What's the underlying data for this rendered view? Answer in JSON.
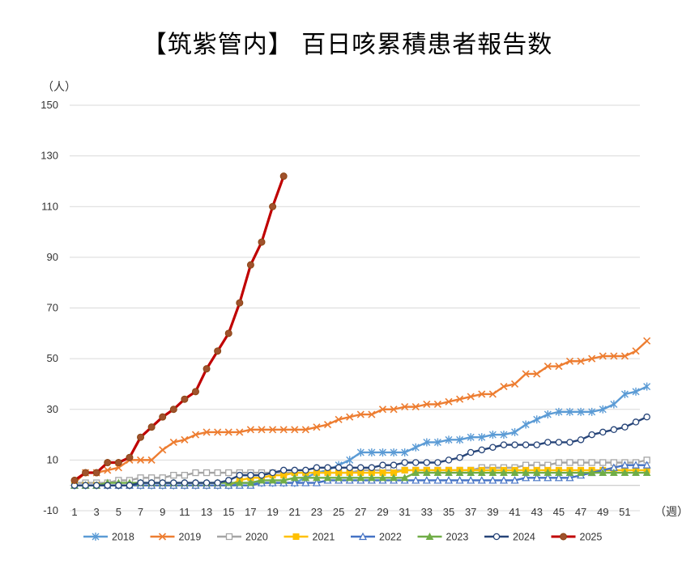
{
  "chart_data": {
    "type": "line",
    "title": "【筑紫管内】 百日咳累積患者報告数",
    "ylabel": "（人）",
    "xlabel": "（週）",
    "ylim": [
      -10,
      150
    ],
    "yticks": [
      -10,
      10,
      30,
      50,
      70,
      90,
      110,
      130,
      150
    ],
    "xlim": [
      1,
      52
    ],
    "xticks": [
      1,
      3,
      5,
      7,
      9,
      11,
      13,
      15,
      17,
      19,
      21,
      23,
      25,
      27,
      29,
      31,
      33,
      35,
      37,
      39,
      41,
      43,
      45,
      47,
      49,
      51
    ],
    "grid": "horizontal",
    "legend": "bottom",
    "series": [
      {
        "name": "2018",
        "color": "#5B9BD5",
        "marker": "star",
        "values": [
          0,
          0,
          0,
          0,
          0,
          0,
          0,
          0,
          0,
          0,
          0,
          0,
          0,
          0,
          0,
          1,
          1,
          1,
          1,
          1,
          1,
          3,
          5,
          6,
          8,
          10,
          13,
          13,
          13,
          13,
          13,
          15,
          17,
          17,
          18,
          18,
          19,
          19,
          20,
          20,
          21,
          24,
          26,
          28,
          29,
          29,
          29,
          29,
          30,
          32,
          36,
          37,
          39
        ]
      },
      {
        "name": "2019",
        "color": "#ED7D31",
        "marker": "x",
        "values": [
          1,
          5,
          5,
          6,
          7,
          10,
          10,
          10,
          14,
          17,
          18,
          20,
          21,
          21,
          21,
          21,
          22,
          22,
          22,
          22,
          22,
          22,
          23,
          24,
          26,
          27,
          28,
          28,
          30,
          30,
          31,
          31,
          32,
          32,
          33,
          34,
          35,
          36,
          36,
          39,
          40,
          44,
          44,
          47,
          47,
          49,
          49,
          50,
          51,
          51,
          51,
          53,
          57
        ]
      },
      {
        "name": "2020",
        "color": "#A5A5A5",
        "marker": "square",
        "values": [
          1,
          1,
          1,
          1,
          2,
          2,
          3,
          3,
          3,
          4,
          4,
          5,
          5,
          5,
          5,
          5,
          5,
          5,
          5,
          5,
          5,
          5,
          5,
          5,
          5,
          5,
          6,
          6,
          6,
          6,
          6,
          6,
          6,
          6,
          6,
          6,
          6,
          7,
          7,
          7,
          7,
          8,
          8,
          8,
          9,
          9,
          9,
          9,
          9,
          9,
          9,
          9,
          10
        ]
      },
      {
        "name": "2021",
        "color": "#FFC000",
        "marker": "square-filled",
        "values": [
          0,
          0,
          0,
          0,
          0,
          0,
          0,
          0,
          0,
          0,
          0,
          0,
          0,
          0,
          0,
          2,
          3,
          3,
          4,
          4,
          5,
          5,
          5,
          5,
          5,
          5,
          5,
          5,
          5,
          5,
          6,
          6,
          6,
          6,
          6,
          6,
          6,
          6,
          6,
          6,
          6,
          6,
          6,
          6,
          6,
          6,
          6,
          6,
          6,
          6,
          6,
          6,
          6
        ]
      },
      {
        "name": "2022",
        "color": "#4472C4",
        "marker": "triangle",
        "values": [
          0,
          0,
          0,
          0,
          0,
          0,
          0,
          0,
          0,
          0,
          0,
          0,
          0,
          0,
          0,
          0,
          0,
          1,
          1,
          1,
          1,
          1,
          1,
          2,
          2,
          2,
          2,
          2,
          2,
          2,
          2,
          2,
          2,
          2,
          2,
          2,
          2,
          2,
          2,
          2,
          2,
          3,
          3,
          3,
          3,
          3,
          4,
          5,
          6,
          7,
          8,
          8,
          8
        ]
      },
      {
        "name": "2023",
        "color": "#70AD47",
        "marker": "triangle-filled",
        "values": [
          0,
          0,
          0,
          1,
          1,
          1,
          1,
          1,
          1,
          1,
          1,
          1,
          1,
          1,
          1,
          1,
          1,
          2,
          2,
          2,
          3,
          3,
          3,
          3,
          3,
          3,
          3,
          3,
          3,
          3,
          3,
          5,
          5,
          5,
          5,
          5,
          5,
          5,
          5,
          5,
          5,
          5,
          5,
          5,
          5,
          5,
          5,
          5,
          5,
          5,
          5,
          5,
          5
        ]
      },
      {
        "name": "2024",
        "color": "#264478",
        "marker": "circle",
        "values": [
          0,
          0,
          0,
          0,
          0,
          0,
          1,
          1,
          1,
          1,
          1,
          1,
          1,
          1,
          2,
          4,
          4,
          4,
          5,
          6,
          6,
          6,
          7,
          7,
          7,
          7,
          7,
          7,
          8,
          8,
          9,
          9,
          9,
          9,
          10,
          11,
          13,
          14,
          15,
          16,
          16,
          16,
          16,
          17,
          17,
          17,
          18,
          20,
          21,
          22,
          23,
          25,
          27
        ]
      },
      {
        "name": "2025",
        "color": "#C00000",
        "marker": "circle-filled",
        "values": [
          2,
          5,
          5,
          9,
          9,
          11,
          19,
          23,
          27,
          30,
          34,
          37,
          46,
          53,
          60,
          72,
          87,
          96,
          110,
          122
        ]
      }
    ]
  }
}
